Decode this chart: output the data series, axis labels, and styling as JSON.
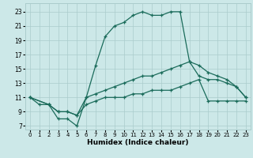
{
  "xlabel": "Humidex (Indice chaleur)",
  "background_color": "#cce8e8",
  "grid_color": "#aacccc",
  "line_color": "#1a6b5a",
  "xlim": [
    -0.5,
    23.5
  ],
  "ylim": [
    6.5,
    24.2
  ],
  "xticks": [
    0,
    1,
    2,
    3,
    4,
    5,
    6,
    7,
    8,
    9,
    10,
    11,
    12,
    13,
    14,
    15,
    16,
    17,
    18,
    19,
    20,
    21,
    22,
    23
  ],
  "yticks": [
    7,
    9,
    11,
    13,
    15,
    17,
    19,
    21,
    23
  ],
  "line1_x": [
    0,
    1,
    2,
    3,
    4,
    5,
    6,
    7,
    8,
    9,
    10,
    11,
    12,
    13,
    14,
    15,
    16,
    17,
    18,
    19,
    20,
    21,
    22,
    23
  ],
  "line1_y": [
    11,
    10,
    10,
    8,
    8,
    7,
    11,
    15.5,
    19.5,
    21,
    21.5,
    22.5,
    23,
    22.5,
    22.5,
    23,
    23,
    16,
    14,
    13.5,
    13.5,
    13,
    12.5,
    11
  ],
  "line2_x": [
    0,
    2,
    3,
    4,
    5,
    6,
    7,
    8,
    9,
    10,
    11,
    12,
    13,
    14,
    15,
    16,
    17,
    18,
    19,
    20,
    21,
    22,
    23
  ],
  "line2_y": [
    11,
    10,
    9,
    9,
    8.5,
    11,
    11.5,
    12,
    12.5,
    13,
    13.5,
    14,
    14,
    14.5,
    15,
    15.5,
    16,
    15.5,
    14.5,
    14,
    13.5,
    12.5,
    11
  ],
  "line3_x": [
    0,
    2,
    3,
    4,
    5,
    6,
    7,
    8,
    9,
    10,
    11,
    12,
    13,
    14,
    15,
    16,
    17,
    18,
    19,
    20,
    21,
    22,
    23
  ],
  "line3_y": [
    11,
    10,
    9,
    9,
    8.5,
    10,
    10.5,
    11,
    11,
    11,
    11.5,
    11.5,
    12,
    12,
    12,
    12.5,
    13,
    13.5,
    10.5,
    10.5,
    10.5,
    10.5,
    10.5
  ]
}
